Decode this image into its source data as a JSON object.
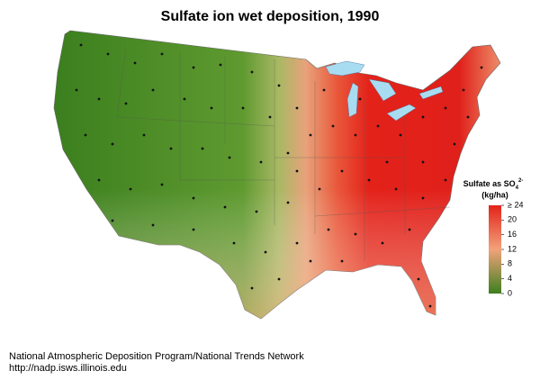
{
  "title": "Sulfate ion wet deposition, 1990",
  "legend": {
    "title": "Sulfate as SO",
    "subscript": "4",
    "superscript": "2-",
    "unit": "(kg/ha)",
    "range": [
      0,
      24
    ],
    "ticks": [
      0,
      4,
      8,
      12,
      16,
      20,
      {
        "value": 24,
        "label": "≥ 24"
      }
    ],
    "colors": [
      "#3e7f1f",
      "#f2a27a",
      "#e3231a"
    ]
  },
  "footer": {
    "line1": "National Atmospheric Deposition Program/National Trends Network",
    "line2": "http://nadp.isws.illinois.edu"
  }
}
